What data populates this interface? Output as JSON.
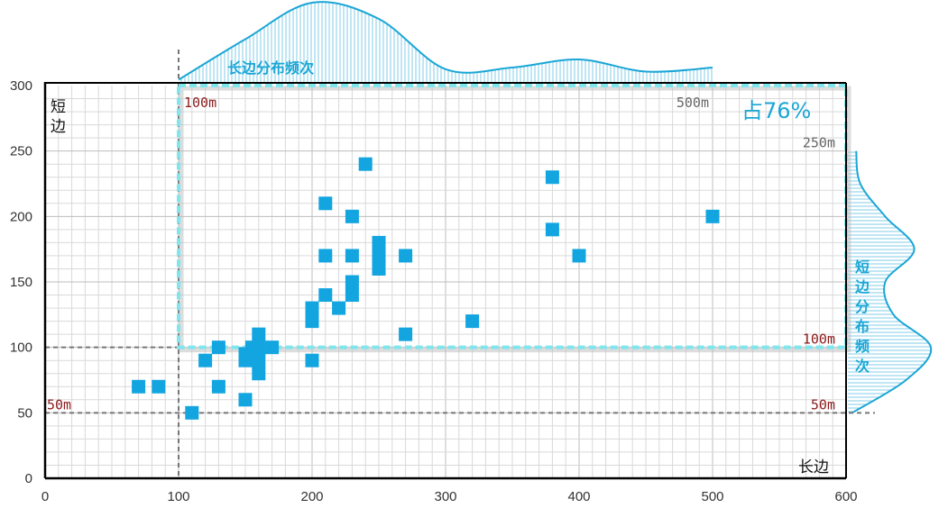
{
  "chart_data": {
    "type": "scatter",
    "xlim": [
      0,
      600
    ],
    "ylim": [
      0,
      300
    ],
    "x_ticks": [
      "0",
      "100",
      "200",
      "300",
      "400",
      "500",
      "600"
    ],
    "y_ticks": [
      "0",
      "50",
      "100",
      "150",
      "200",
      "250",
      "300"
    ],
    "xlabel": "长边",
    "ylabel": "短边",
    "grid": true,
    "points": [
      {
        "x": 70,
        "y": 70
      },
      {
        "x": 85,
        "y": 70
      },
      {
        "x": 110,
        "y": 50
      },
      {
        "x": 120,
        "y": 90
      },
      {
        "x": 130,
        "y": 100
      },
      {
        "x": 130,
        "y": 70
      },
      {
        "x": 150,
        "y": 60
      },
      {
        "x": 150,
        "y": 90
      },
      {
        "x": 150,
        "y": 95
      },
      {
        "x": 155,
        "y": 100
      },
      {
        "x": 160,
        "y": 110
      },
      {
        "x": 160,
        "y": 100
      },
      {
        "x": 160,
        "y": 90
      },
      {
        "x": 160,
        "y": 80
      },
      {
        "x": 170,
        "y": 100
      },
      {
        "x": 200,
        "y": 130
      },
      {
        "x": 200,
        "y": 125
      },
      {
        "x": 200,
        "y": 120
      },
      {
        "x": 200,
        "y": 90
      },
      {
        "x": 210,
        "y": 210
      },
      {
        "x": 210,
        "y": 170
      },
      {
        "x": 210,
        "y": 140
      },
      {
        "x": 220,
        "y": 130
      },
      {
        "x": 230,
        "y": 200
      },
      {
        "x": 230,
        "y": 170
      },
      {
        "x": 230,
        "y": 150
      },
      {
        "x": 230,
        "y": 140
      },
      {
        "x": 240,
        "y": 240
      },
      {
        "x": 250,
        "y": 180
      },
      {
        "x": 250,
        "y": 175
      },
      {
        "x": 250,
        "y": 170
      },
      {
        "x": 250,
        "y": 165
      },
      {
        "x": 250,
        "y": 160
      },
      {
        "x": 270,
        "y": 170
      },
      {
        "x": 270,
        "y": 110
      },
      {
        "x": 320,
        "y": 120
      },
      {
        "x": 380,
        "y": 230
      },
      {
        "x": 380,
        "y": 190
      },
      {
        "x": 400,
        "y": 170
      },
      {
        "x": 500,
        "y": 200
      }
    ],
    "long_side_distribution": {
      "label": "长边分布频次",
      "x": [
        100,
        150,
        200,
        250,
        300,
        350,
        400,
        450,
        500
      ],
      "density": [
        0.05,
        0.55,
        1.0,
        0.8,
        0.18,
        0.2,
        0.3,
        0.15,
        0.2
      ]
    },
    "short_side_distribution": {
      "label": "短边分布频次",
      "y": [
        50,
        75,
        100,
        125,
        150,
        175,
        200,
        225,
        250
      ],
      "density": [
        0.05,
        0.7,
        1.0,
        0.55,
        0.45,
        0.8,
        0.45,
        0.15,
        0.1
      ]
    },
    "region": {
      "x_min": 100,
      "x_max": 600,
      "y_min": 100,
      "y_max": 300,
      "label": "占76%"
    },
    "annotations": [
      {
        "text": "100m",
        "x": 100,
        "y": 300,
        "color": "#8b1a1a"
      },
      {
        "text": "500m",
        "x": 500,
        "y": 300,
        "color": "#666666"
      },
      {
        "text": "250m",
        "x": 600,
        "y": 250,
        "color": "#666666"
      },
      {
        "text": "100m",
        "x": 600,
        "y": 100,
        "color": "#8b1a1a"
      },
      {
        "text": "50m",
        "x": 0,
        "y": 50,
        "color": "#8b1a1a"
      },
      {
        "text": "50m",
        "x": 600,
        "y": 50,
        "color": "#8b1a1a"
      }
    ],
    "colors": {
      "marker": "#12a5e0",
      "distribution": "#1aa6d6",
      "region": "#7fe6ee",
      "guide": "#777777"
    }
  }
}
